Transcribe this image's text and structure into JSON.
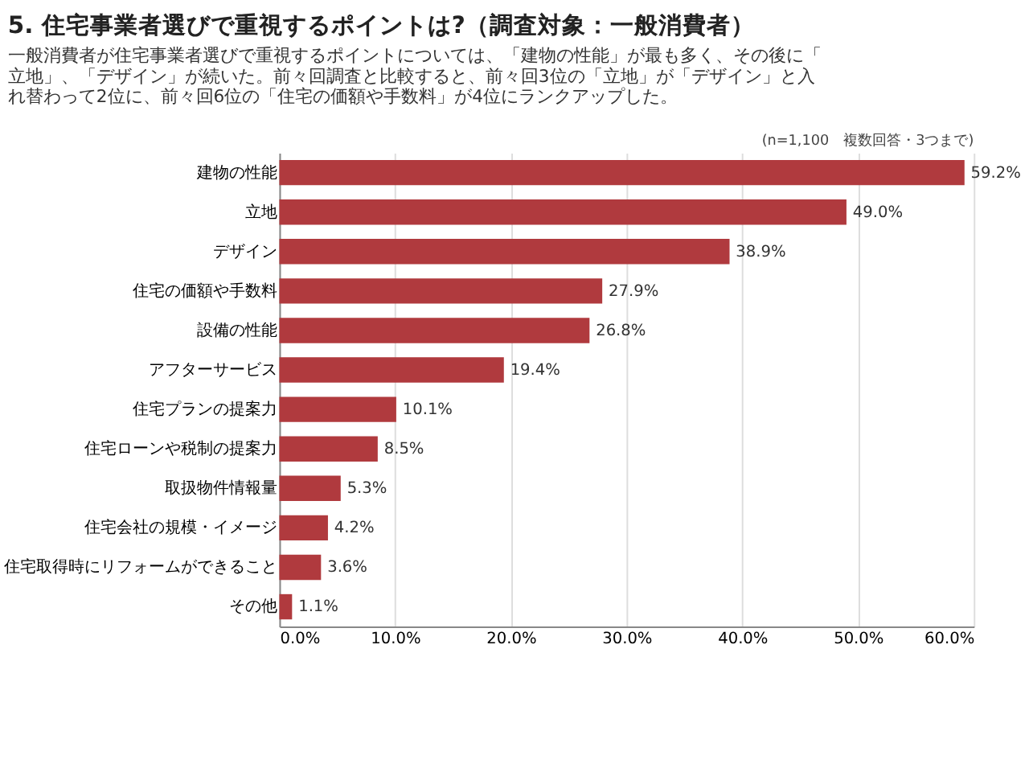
{
  "chart_data": {
    "type": "bar",
    "orientation": "horizontal",
    "title": "5. 住宅事業者選びで重視するポイントは?（調査対象：一般消費者）",
    "subtitle": "一般消費者が住宅事業者選びで重視するポイントについては、「建物の性能」が最も多く、その後に「立地」、「デザイン」が続いた。前々回調査と比較すると、前々回3位の「立地」が「デザイン」と入れ替わって2位に、前々回6位の「住宅の価額や手数料」が4位にランクアップした。",
    "annotations": [
      "(n=1,100　複数回答・3つまで)"
    ],
    "categories": [
      "建物の性能",
      "立地",
      "デザイン",
      "住宅の価額や手数料",
      "設備の性能",
      "アフターサービス",
      "住宅プランの提案力",
      "住宅ローンや税制の提案力",
      "取扱物件情報量",
      "住宅会社の規模・イメージ",
      "住宅取得時にリフォームができること",
      "その他"
    ],
    "values": [
      59.2,
      49.0,
      38.9,
      27.9,
      26.8,
      19.4,
      10.1,
      8.5,
      5.3,
      4.2,
      3.6,
      1.1
    ],
    "value_labels": [
      "59.2%",
      "49.0%",
      "38.9%",
      "27.9%",
      "26.8%",
      "19.4%",
      "10.1%",
      "8.5%",
      "5.3%",
      "4.2%",
      "3.6%",
      "1.1%"
    ],
    "color": "#b03a3e",
    "xlim": [
      0,
      60
    ],
    "xticks": [
      {
        "value": 0,
        "label": "0.0%"
      },
      {
        "value": 10,
        "label": "10.0%"
      },
      {
        "value": 20,
        "label": "20.0%"
      },
      {
        "value": 30,
        "label": "30.0%"
      },
      {
        "value": 40,
        "label": "40.0%"
      },
      {
        "value": 50,
        "label": "50.0%"
      },
      {
        "value": 60,
        "label": "60.0%"
      }
    ],
    "grid": "x"
  }
}
